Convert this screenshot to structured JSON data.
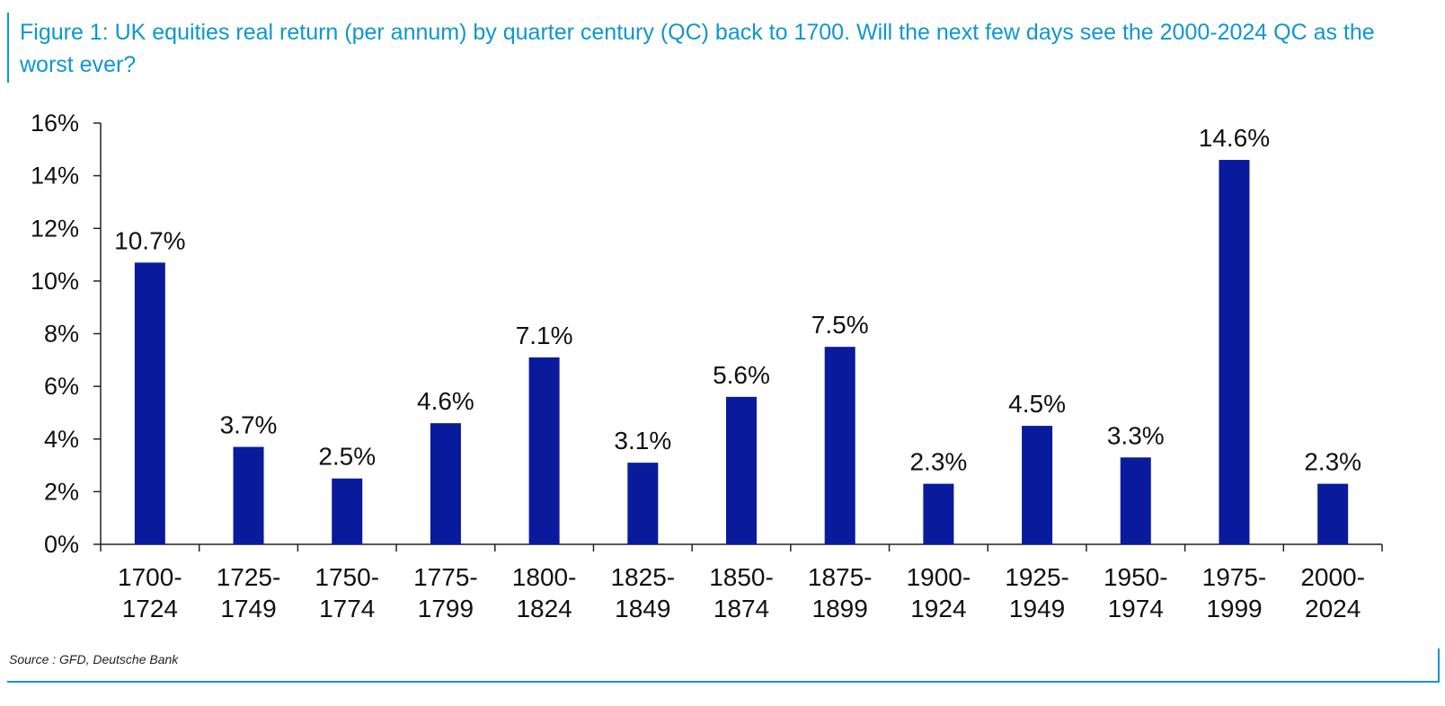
{
  "title": "Figure 1: UK equities real return (per annum) by quarter century (QC) back to 1700. Will the next few days see the 2000-2024 QC as the worst ever?",
  "source": "Source : GFD, Deutsche Bank",
  "colors": {
    "bar": "#0a1a9c",
    "accent": "#0e96d2",
    "text": "#111111",
    "axis": "#222222"
  },
  "chart_data": {
    "type": "bar",
    "title": "UK equities real return (per annum) by quarter century (QC)",
    "xlabel": "",
    "ylabel": "",
    "ylim": [
      0,
      16
    ],
    "yticks": [
      0,
      2,
      4,
      6,
      8,
      10,
      12,
      14,
      16
    ],
    "ytick_labels": [
      "0%",
      "2%",
      "4%",
      "6%",
      "8%",
      "10%",
      "12%",
      "14%",
      "16%"
    ],
    "grid": false,
    "categories": [
      [
        "1700-",
        "1724"
      ],
      [
        "1725-",
        "1749"
      ],
      [
        "1750-",
        "1774"
      ],
      [
        "1775-",
        "1799"
      ],
      [
        "1800-",
        "1824"
      ],
      [
        "1825-",
        "1849"
      ],
      [
        "1850-",
        "1874"
      ],
      [
        "1875-",
        "1899"
      ],
      [
        "1900-",
        "1924"
      ],
      [
        "1925-",
        "1949"
      ],
      [
        "1950-",
        "1974"
      ],
      [
        "1975-",
        "1999"
      ],
      [
        "2000-",
        "2024"
      ]
    ],
    "values": [
      10.7,
      3.7,
      2.5,
      4.6,
      7.1,
      3.1,
      5.6,
      7.5,
      2.3,
      4.5,
      3.3,
      14.6,
      2.3
    ],
    "data_labels": [
      "10.7%",
      "3.7%",
      "2.5%",
      "4.6%",
      "7.1%",
      "3.1%",
      "5.6%",
      "7.5%",
      "2.3%",
      "4.5%",
      "3.3%",
      "14.6%",
      "2.3%"
    ]
  }
}
